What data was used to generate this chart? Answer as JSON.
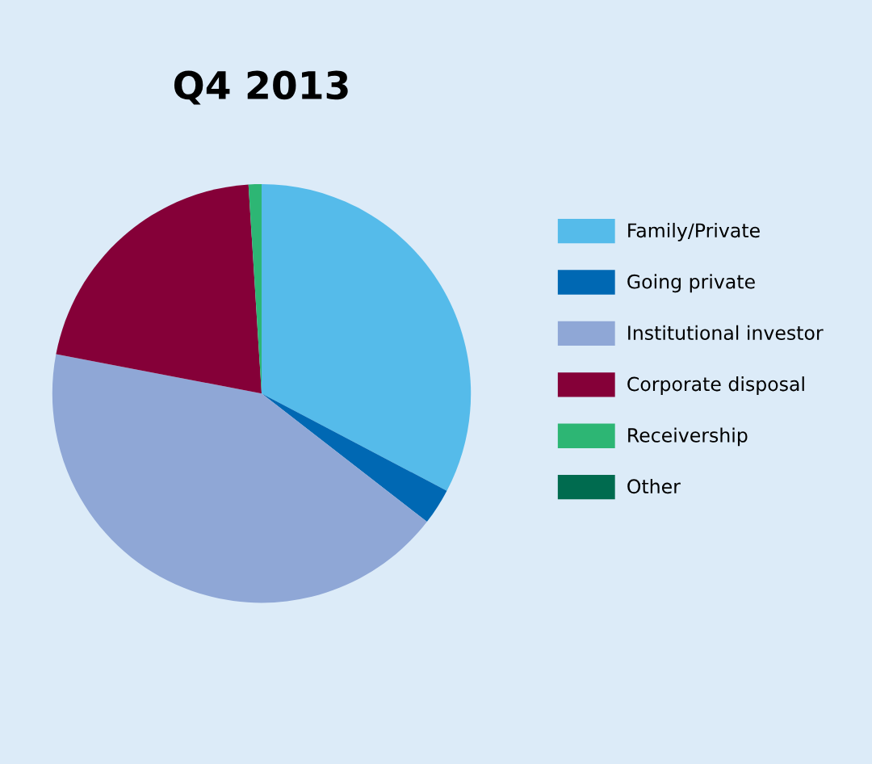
{
  "chart_data": {
    "type": "pie",
    "title": "Q4 2013",
    "categories": [
      "Family/Private",
      "Going private",
      "Institutional investor",
      "Corporate disposal",
      "Receivership",
      "Other"
    ],
    "values": [
      32.7,
      2.8,
      42.5,
      21,
      1,
      0
    ],
    "colors": [
      "#55bbea",
      "#0068b3",
      "#8fa7d6",
      "#850038",
      "#2db674",
      "#006b4f"
    ],
    "legend": "right"
  }
}
